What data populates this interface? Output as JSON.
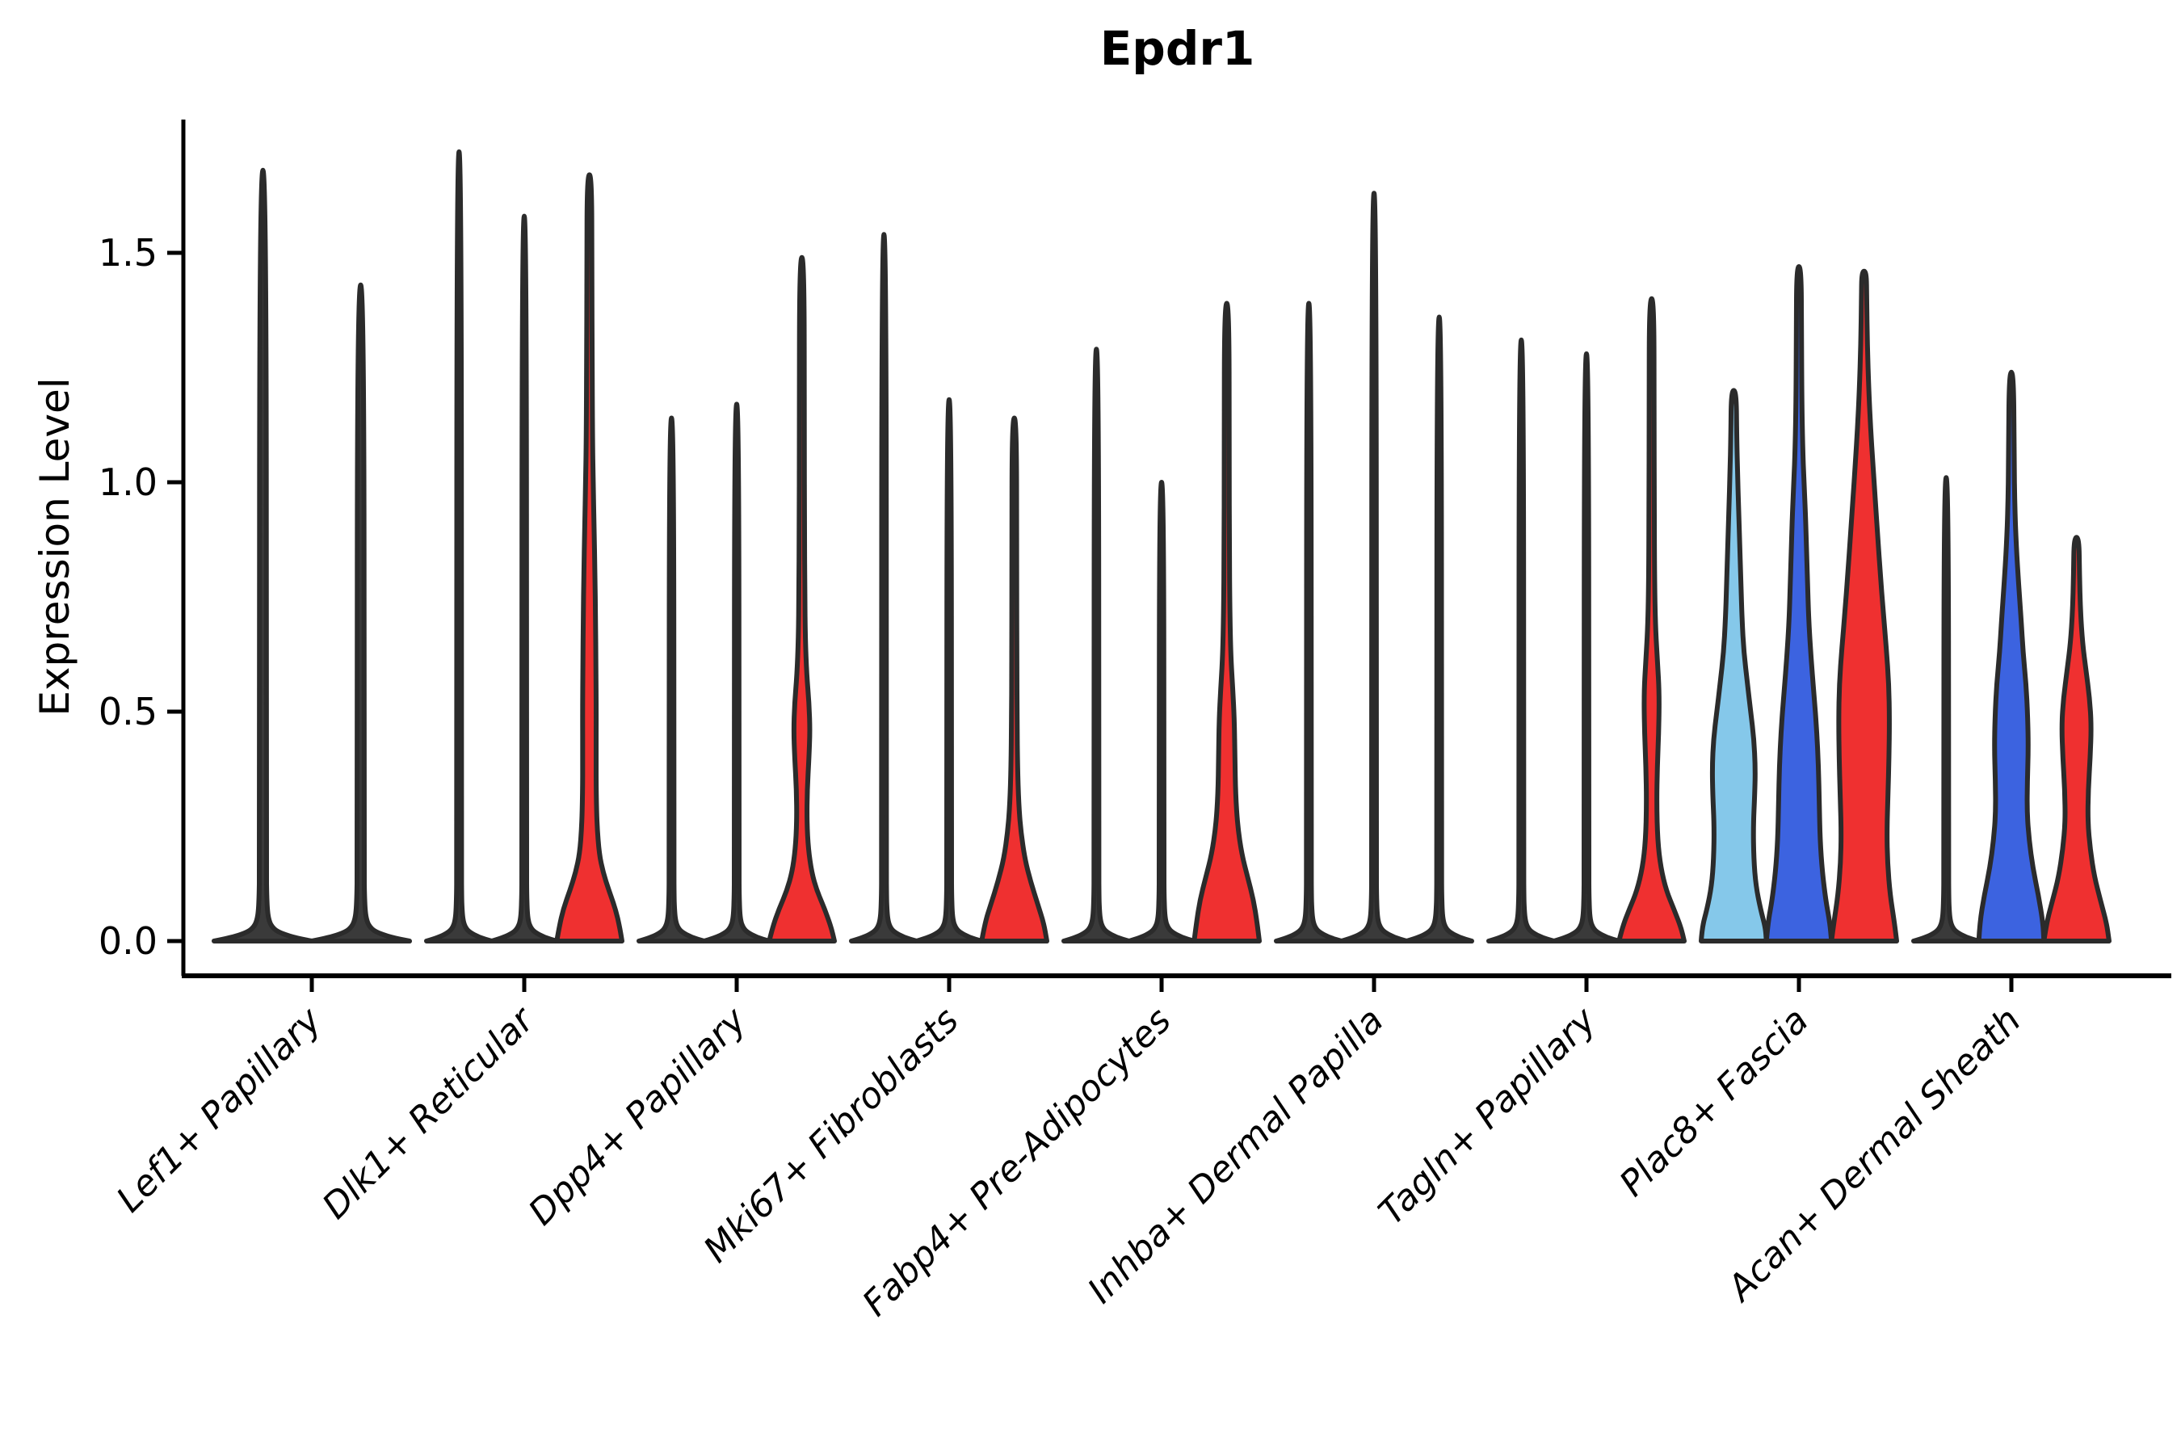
{
  "title": "Epdr1",
  "ylabel": "Expression Level",
  "colors": {
    "red": "#ef3030",
    "blue": "#3c63e0",
    "lightblue": "#85c8ea",
    "dark": "#3a3a3a",
    "outline": "#2b2b2b",
    "axis": "#000000"
  },
  "chart_data": {
    "type": "violin",
    "title": "Epdr1",
    "xlabel": "",
    "ylabel": "Expression Level",
    "ylim": [
      -0.08,
      1.79
    ],
    "yticks": [
      {
        "value": 0.0,
        "label": "0.0"
      },
      {
        "value": 0.5,
        "label": "0.5"
      },
      {
        "value": 1.0,
        "label": "1.0"
      },
      {
        "value": 1.5,
        "label": "1.5"
      }
    ],
    "grid": false,
    "legend": "none",
    "categories": [
      "Lef1+ Papillary",
      "Dlk1+ Reticular",
      "Dpp4+ Papillary",
      "Mki67+ Fibroblasts",
      "Fabp4+ Pre-Adipocytes",
      "Inhba+ Dermal Papilla",
      "Tagln+ Papillary",
      "Plac8+ Fascia",
      "Acan+ Dermal Sheath"
    ],
    "groups": [
      {
        "label": "Lef1+ Papillary",
        "violins": [
          {
            "max": 1.68,
            "color": "dark",
            "body": "thin"
          },
          {
            "max": 1.43,
            "color": "dark",
            "body": "thin"
          }
        ]
      },
      {
        "label": "Dlk1+ Reticular",
        "violins": [
          {
            "max": 1.72,
            "color": "dark",
            "body": "thin"
          },
          {
            "max": 1.58,
            "color": "dark",
            "body": "thin"
          },
          {
            "max": 1.67,
            "color": "red",
            "body": "shaped",
            "profile": [
              [
                0,
                1.0
              ],
              [
                0.03,
                0.93
              ],
              [
                0.07,
                0.8
              ],
              [
                0.11,
                0.6
              ],
              [
                0.15,
                0.42
              ],
              [
                0.19,
                0.3
              ],
              [
                0.25,
                0.235
              ],
              [
                0.32,
                0.21
              ],
              [
                0.4,
                0.205
              ],
              [
                0.5,
                0.21
              ],
              [
                0.6,
                0.2
              ],
              [
                0.7,
                0.19
              ],
              [
                0.8,
                0.17
              ],
              [
                0.9,
                0.145
              ],
              [
                1.0,
                0.115
              ],
              [
                1.1,
                0.095
              ],
              [
                1.25,
                0.085
              ],
              [
                1.45,
                0.075
              ],
              [
                1.67,
                0.07
              ]
            ]
          }
        ]
      },
      {
        "label": "Dpp4+ Papillary",
        "violins": [
          {
            "max": 1.14,
            "color": "dark",
            "body": "thin"
          },
          {
            "max": 1.17,
            "color": "dark",
            "body": "thin"
          },
          {
            "max": 1.49,
            "color": "red",
            "body": "shaped",
            "profile": [
              [
                0,
                1.0
              ],
              [
                0.03,
                0.9
              ],
              [
                0.07,
                0.7
              ],
              [
                0.11,
                0.46
              ],
              [
                0.15,
                0.3
              ],
              [
                0.2,
                0.2
              ],
              [
                0.26,
                0.155
              ],
              [
                0.33,
                0.165
              ],
              [
                0.4,
                0.22
              ],
              [
                0.46,
                0.25
              ],
              [
                0.52,
                0.22
              ],
              [
                0.58,
                0.15
              ],
              [
                0.66,
                0.105
              ],
              [
                0.76,
                0.09
              ],
              [
                0.9,
                0.08
              ],
              [
                1.1,
                0.075
              ],
              [
                1.49,
                0.07
              ]
            ]
          }
        ]
      },
      {
        "label": "Mki67+ Fibroblasts",
        "violins": [
          {
            "max": 1.54,
            "color": "dark",
            "body": "thin"
          },
          {
            "max": 1.18,
            "color": "dark",
            "body": "thin"
          },
          {
            "max": 1.14,
            "color": "red",
            "body": "shaped",
            "profile": [
              [
                0,
                1.0
              ],
              [
                0.04,
                0.9
              ],
              [
                0.08,
                0.72
              ],
              [
                0.13,
                0.5
              ],
              [
                0.18,
                0.32
              ],
              [
                0.24,
                0.2
              ],
              [
                0.3,
                0.135
              ],
              [
                0.38,
                0.1
              ],
              [
                0.48,
                0.085
              ],
              [
                0.6,
                0.078
              ],
              [
                0.8,
                0.072
              ],
              [
                1.14,
                0.07
              ]
            ]
          }
        ]
      },
      {
        "label": "Fabp4+ Pre-Adipocytes",
        "violins": [
          {
            "max": 1.29,
            "color": "dark",
            "body": "thin"
          },
          {
            "max": 1.0,
            "color": "dark",
            "body": "thin"
          },
          {
            "max": 1.39,
            "color": "red",
            "body": "shaped",
            "profile": [
              [
                0,
                1.0
              ],
              [
                0.04,
                0.93
              ],
              [
                0.09,
                0.82
              ],
              [
                0.14,
                0.64
              ],
              [
                0.19,
                0.46
              ],
              [
                0.25,
                0.335
              ],
              [
                0.32,
                0.27
              ],
              [
                0.4,
                0.25
              ],
              [
                0.48,
                0.235
              ],
              [
                0.55,
                0.185
              ],
              [
                0.62,
                0.125
              ],
              [
                0.72,
                0.095
              ],
              [
                0.85,
                0.08
              ],
              [
                1.05,
                0.075
              ],
              [
                1.39,
                0.07
              ]
            ]
          }
        ]
      },
      {
        "label": "Inhba+ Dermal Papilla",
        "violins": [
          {
            "max": 1.39,
            "color": "dark",
            "body": "thin"
          },
          {
            "max": 1.63,
            "color": "dark",
            "body": "thin"
          },
          {
            "max": 1.36,
            "color": "dark",
            "body": "thin"
          }
        ]
      },
      {
        "label": "Tagln+ Papillary",
        "violins": [
          {
            "max": 1.31,
            "color": "dark",
            "body": "thin"
          },
          {
            "max": 1.28,
            "color": "dark",
            "body": "thin"
          },
          {
            "max": 1.4,
            "color": "red",
            "body": "shaped",
            "profile": [
              [
                0,
                1.0
              ],
              [
                0.03,
                0.9
              ],
              [
                0.07,
                0.68
              ],
              [
                0.11,
                0.45
              ],
              [
                0.16,
                0.28
              ],
              [
                0.22,
                0.185
              ],
              [
                0.3,
                0.155
              ],
              [
                0.38,
                0.175
              ],
              [
                0.46,
                0.22
              ],
              [
                0.54,
                0.235
              ],
              [
                0.61,
                0.18
              ],
              [
                0.68,
                0.12
              ],
              [
                0.78,
                0.09
              ],
              [
                0.95,
                0.08
              ],
              [
                1.15,
                0.075
              ],
              [
                1.4,
                0.07
              ]
            ]
          }
        ]
      },
      {
        "label": "Plac8+ Fascia",
        "violins": [
          {
            "max": 1.2,
            "color": "lightblue",
            "body": "shaped",
            "profile": [
              [
                0,
                1.0
              ],
              [
                0.03,
                0.97
              ],
              [
                0.07,
                0.82
              ],
              [
                0.12,
                0.68
              ],
              [
                0.18,
                0.615
              ],
              [
                0.25,
                0.6
              ],
              [
                0.32,
                0.645
              ],
              [
                0.38,
                0.66
              ],
              [
                0.44,
                0.62
              ],
              [
                0.5,
                0.52
              ],
              [
                0.56,
                0.42
              ],
              [
                0.63,
                0.31
              ],
              [
                0.7,
                0.255
              ],
              [
                0.78,
                0.22
              ],
              [
                0.86,
                0.185
              ],
              [
                0.94,
                0.15
              ],
              [
                1.02,
                0.115
              ],
              [
                1.1,
                0.09
              ],
              [
                1.2,
                0.075
              ]
            ]
          },
          {
            "max": 1.47,
            "color": "blue",
            "body": "shaped",
            "profile": [
              [
                0,
                1.0
              ],
              [
                0.04,
                0.95
              ],
              [
                0.09,
                0.82
              ],
              [
                0.15,
                0.72
              ],
              [
                0.22,
                0.65
              ],
              [
                0.3,
                0.625
              ],
              [
                0.38,
                0.6
              ],
              [
                0.46,
                0.545
              ],
              [
                0.54,
                0.46
              ],
              [
                0.62,
                0.37
              ],
              [
                0.7,
                0.3
              ],
              [
                0.78,
                0.265
              ],
              [
                0.86,
                0.23
              ],
              [
                0.93,
                0.2
              ],
              [
                1.0,
                0.155
              ],
              [
                1.08,
                0.115
              ],
              [
                1.18,
                0.09
              ],
              [
                1.32,
                0.078
              ],
              [
                1.47,
                0.07
              ]
            ]
          },
          {
            "max": 1.46,
            "color": "red",
            "body": "shaped",
            "profile": [
              [
                0,
                1.0
              ],
              [
                0.04,
                0.93
              ],
              [
                0.1,
                0.8
              ],
              [
                0.17,
                0.72
              ],
              [
                0.24,
                0.7
              ],
              [
                0.32,
                0.735
              ],
              [
                0.4,
                0.765
              ],
              [
                0.48,
                0.78
              ],
              [
                0.56,
                0.76
              ],
              [
                0.64,
                0.68
              ],
              [
                0.72,
                0.585
              ],
              [
                0.8,
                0.5
              ],
              [
                0.88,
                0.42
              ],
              [
                0.96,
                0.345
              ],
              [
                1.04,
                0.27
              ],
              [
                1.12,
                0.2
              ],
              [
                1.2,
                0.145
              ],
              [
                1.3,
                0.1
              ],
              [
                1.4,
                0.08
              ],
              [
                1.46,
                0.07
              ]
            ]
          }
        ]
      },
      {
        "label": "Acan+ Dermal Sheath",
        "violins": [
          {
            "max": 1.01,
            "color": "dark",
            "body": "thin"
          },
          {
            "max": 1.24,
            "color": "blue",
            "body": "shaped",
            "profile": [
              [
                0,
                1.0
              ],
              [
                0.04,
                0.97
              ],
              [
                0.1,
                0.83
              ],
              [
                0.16,
                0.66
              ],
              [
                0.22,
                0.545
              ],
              [
                0.28,
                0.48
              ],
              [
                0.35,
                0.49
              ],
              [
                0.42,
                0.52
              ],
              [
                0.49,
                0.5
              ],
              [
                0.56,
                0.45
              ],
              [
                0.63,
                0.36
              ],
              [
                0.7,
                0.3
              ],
              [
                0.78,
                0.22
              ],
              [
                0.86,
                0.15
              ],
              [
                0.95,
                0.105
              ],
              [
                1.05,
                0.085
              ],
              [
                1.24,
                0.07
              ]
            ]
          },
          {
            "max": 0.88,
            "color": "red",
            "body": "shaped",
            "profile": [
              [
                0,
                1.0
              ],
              [
                0.04,
                0.92
              ],
              [
                0.09,
                0.73
              ],
              [
                0.14,
                0.55
              ],
              [
                0.2,
                0.42
              ],
              [
                0.26,
                0.345
              ],
              [
                0.33,
                0.36
              ],
              [
                0.4,
                0.42
              ],
              [
                0.47,
                0.455
              ],
              [
                0.53,
                0.4
              ],
              [
                0.59,
                0.29
              ],
              [
                0.65,
                0.185
              ],
              [
                0.72,
                0.12
              ],
              [
                0.8,
                0.09
              ],
              [
                0.88,
                0.075
              ]
            ]
          }
        ]
      }
    ]
  }
}
